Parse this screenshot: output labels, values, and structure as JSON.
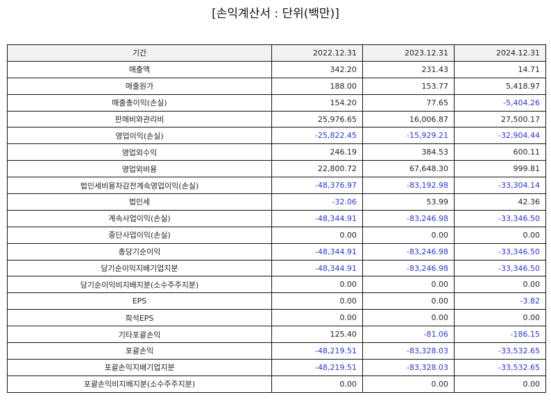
{
  "title": "[손익계산서 : 단위(백만)]",
  "table": {
    "header": [
      "기간",
      "2022.12.31",
      "2023.12.31",
      "2024.12.31"
    ],
    "rows": [
      [
        "매출액",
        "342.20",
        "231.43",
        "14.71"
      ],
      [
        "매출원가",
        "188.00",
        "153.77",
        "5,418.97"
      ],
      [
        "매출총이익(손실)",
        "154.20",
        "77.65",
        "-5,404.26"
      ],
      [
        "판매비와관리비",
        "25,976.65",
        "16,006.87",
        "27,500.17"
      ],
      [
        "영업이익(손실)",
        "-25,822.45",
        "-15,929.21",
        "-32,904.44"
      ],
      [
        "영업외수익",
        "246.19",
        "384.53",
        "600.11"
      ],
      [
        "영업외비용",
        "22,800.72",
        "67,648.30",
        "999.81"
      ],
      [
        "법인세비용차감전계속영업이익(손실)",
        "-48,376.97",
        "-83,192.98",
        "-33,304.14"
      ],
      [
        "법인세",
        "-32.06",
        "53.99",
        "42.36"
      ],
      [
        "계속사업이익(손실)",
        "-48,344.91",
        "-83,246.98",
        "-33,346.50"
      ],
      [
        "중단사업이익(손실)",
        "0.00",
        "0.00",
        "0.00"
      ],
      [
        "총당기순이익",
        "-48,344.91",
        "-83,246.98",
        "-33,346.50"
      ],
      [
        "당기순이익지배기업지분",
        "-48,344.91",
        "-83,246.98",
        "-33,346.50"
      ],
      [
        "당기순이익비지배지분(소수주주지분)",
        "0.00",
        "0.00",
        "0.00"
      ],
      [
        "EPS",
        "0.00",
        "0.00",
        "-3.82"
      ],
      [
        "희석EPS",
        "0.00",
        "0.00",
        "0.00"
      ],
      [
        "기타포괄손익",
        "125.40",
        "-81.06",
        "-186.15"
      ],
      [
        "포괄손익",
        "-48,219.51",
        "-83,328.03",
        "-33,532.65"
      ],
      [
        "포괄손익지배기업지분",
        "-48,219.51",
        "-83,328.03",
        "-33,532.65"
      ],
      [
        "포괄손익비지배지분(소수주주지분)",
        "0.00",
        "0.00",
        "0.00"
      ]
    ]
  }
}
